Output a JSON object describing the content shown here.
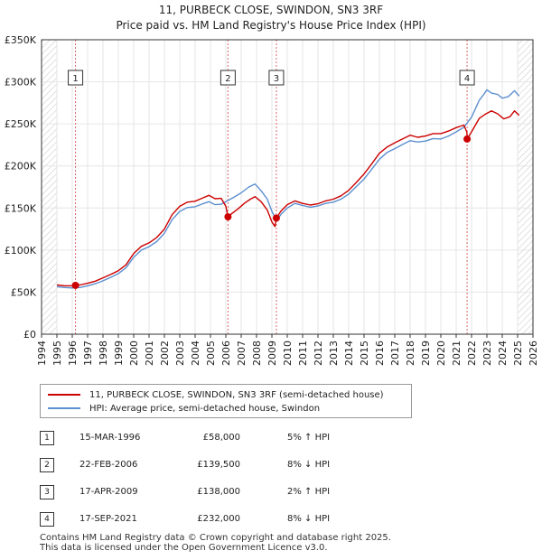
{
  "header": {
    "title": "11, PURBECK CLOSE, SWINDON, SN3 3RF",
    "subtitle": "Price paid vs. HM Land Registry's House Price Index (HPI)"
  },
  "colors": {
    "property": "#cc0000",
    "hpi": "#5b8fd0",
    "marker": "#cc0000",
    "vline": "#d96666",
    "hatch": "#cccccc"
  },
  "chart_data": {
    "type": "line",
    "x_unit": "year",
    "xlim": [
      1994,
      2026
    ],
    "ylim": [
      0,
      350000
    ],
    "x_ticks": [
      "1994",
      "1995",
      "1996",
      "1997",
      "1998",
      "1999",
      "2000",
      "2001",
      "2002",
      "2003",
      "2004",
      "2005",
      "2006",
      "2007",
      "2008",
      "2009",
      "2010",
      "2011",
      "2012",
      "2013",
      "2014",
      "2015",
      "2016",
      "2017",
      "2018",
      "2019",
      "2020",
      "2021",
      "2022",
      "2023",
      "2024",
      "2025",
      "2026"
    ],
    "y_ticks": [
      {
        "value": 0,
        "label": "£0"
      },
      {
        "value": 50000,
        "label": "£50K"
      },
      {
        "value": 100000,
        "label": "£100K"
      },
      {
        "value": 150000,
        "label": "£150K"
      },
      {
        "value": 200000,
        "label": "£200K"
      },
      {
        "value": 250000,
        "label": "£250K"
      },
      {
        "value": 300000,
        "label": "£300K"
      },
      {
        "value": 350000,
        "label": "£350K"
      }
    ],
    "hatched_ranges": [
      [
        1994,
        1995
      ],
      [
        2025.0,
        2026
      ]
    ],
    "series": [
      {
        "name": "11, PURBECK CLOSE, SWINDON, SN3 3RF (semi-detached house)",
        "color": "#cc0000",
        "points": [
          [
            1995.0,
            58500
          ],
          [
            1995.5,
            57500
          ],
          [
            1996.0,
            57500
          ],
          [
            1996.2,
            58000
          ],
          [
            1996.5,
            58500
          ],
          [
            1997.0,
            60500
          ],
          [
            1997.5,
            63000
          ],
          [
            1998.0,
            67000
          ],
          [
            1998.5,
            71000
          ],
          [
            1999.0,
            75500
          ],
          [
            1999.5,
            82500
          ],
          [
            2000.0,
            96000
          ],
          [
            2000.5,
            104500
          ],
          [
            2001.0,
            108500
          ],
          [
            2001.5,
            115000
          ],
          [
            2002.0,
            125000
          ],
          [
            2002.5,
            142000
          ],
          [
            2003.0,
            152000
          ],
          [
            2003.5,
            157000
          ],
          [
            2004.0,
            158000
          ],
          [
            2004.5,
            162000
          ],
          [
            2004.9,
            165000
          ],
          [
            2005.3,
            161000
          ],
          [
            2005.7,
            161500
          ],
          [
            2006.0,
            152000
          ],
          [
            2006.14,
            139500
          ],
          [
            2006.4,
            143500
          ],
          [
            2006.8,
            149000
          ],
          [
            2007.2,
            155500
          ],
          [
            2007.6,
            160500
          ],
          [
            2007.9,
            163500
          ],
          [
            2008.3,
            157500
          ],
          [
            2008.7,
            147500
          ],
          [
            2009.0,
            133500
          ],
          [
            2009.2,
            128000
          ],
          [
            2009.29,
            138000
          ],
          [
            2009.6,
            146500
          ],
          [
            2010.0,
            154000
          ],
          [
            2010.5,
            158500
          ],
          [
            2011.0,
            155500
          ],
          [
            2011.5,
            153500
          ],
          [
            2012.0,
            155000
          ],
          [
            2012.5,
            158500
          ],
          [
            2013.0,
            160500
          ],
          [
            2013.5,
            164500
          ],
          [
            2014.0,
            171000
          ],
          [
            2014.5,
            180500
          ],
          [
            2015.0,
            190500
          ],
          [
            2015.5,
            202500
          ],
          [
            2016.0,
            215000
          ],
          [
            2016.5,
            222500
          ],
          [
            2017.0,
            227500
          ],
          [
            2017.5,
            232000
          ],
          [
            2018.0,
            236500
          ],
          [
            2018.5,
            234000
          ],
          [
            2019.0,
            235500
          ],
          [
            2019.5,
            238500
          ],
          [
            2020.0,
            238500
          ],
          [
            2020.5,
            241500
          ],
          [
            2021.0,
            245500
          ],
          [
            2021.5,
            248500
          ],
          [
            2021.7,
            240000
          ],
          [
            2021.71,
            232000
          ],
          [
            2022.0,
            240500
          ],
          [
            2022.5,
            256500
          ],
          [
            2022.9,
            261500
          ],
          [
            2023.3,
            265500
          ],
          [
            2023.7,
            262000
          ],
          [
            2024.1,
            256000
          ],
          [
            2024.5,
            258500
          ],
          [
            2024.8,
            265500
          ],
          [
            2025.1,
            260000
          ]
        ]
      },
      {
        "name": "HPI: Average price, semi-detached house, Swindon",
        "color": "#5b8fd0",
        "points": [
          [
            1995.0,
            56500
          ],
          [
            1995.5,
            55500
          ],
          [
            1996.0,
            55000
          ],
          [
            1996.5,
            55500
          ],
          [
            1997.0,
            57500
          ],
          [
            1997.5,
            60000
          ],
          [
            1998.0,
            63500
          ],
          [
            1998.5,
            67500
          ],
          [
            1999.0,
            72000
          ],
          [
            1999.5,
            79000
          ],
          [
            2000.0,
            91500
          ],
          [
            2000.5,
            100000
          ],
          [
            2001.0,
            104000
          ],
          [
            2001.5,
            110000
          ],
          [
            2002.0,
            120000
          ],
          [
            2002.5,
            136000
          ],
          [
            2003.0,
            146000
          ],
          [
            2003.5,
            150500
          ],
          [
            2004.0,
            151500
          ],
          [
            2004.5,
            155000
          ],
          [
            2004.9,
            157500
          ],
          [
            2005.3,
            154000
          ],
          [
            2005.7,
            154500
          ],
          [
            2006.0,
            157500
          ],
          [
            2006.5,
            162500
          ],
          [
            2007.0,
            168000
          ],
          [
            2007.5,
            175000
          ],
          [
            2007.9,
            178500
          ],
          [
            2008.3,
            170500
          ],
          [
            2008.7,
            160500
          ],
          [
            2009.0,
            146000
          ],
          [
            2009.3,
            135500
          ],
          [
            2009.6,
            142500
          ],
          [
            2010.0,
            150000
          ],
          [
            2010.5,
            155500
          ],
          [
            2011.0,
            153000
          ],
          [
            2011.5,
            151000
          ],
          [
            2012.0,
            152500
          ],
          [
            2012.5,
            155500
          ],
          [
            2013.0,
            157000
          ],
          [
            2013.5,
            160500
          ],
          [
            2014.0,
            166500
          ],
          [
            2014.5,
            175500
          ],
          [
            2015.0,
            184500
          ],
          [
            2015.5,
            196000
          ],
          [
            2016.0,
            208000
          ],
          [
            2016.5,
            216000
          ],
          [
            2017.0,
            220500
          ],
          [
            2017.5,
            225500
          ],
          [
            2018.0,
            230000
          ],
          [
            2018.5,
            228500
          ],
          [
            2019.0,
            229500
          ],
          [
            2019.5,
            232500
          ],
          [
            2020.0,
            232000
          ],
          [
            2020.5,
            235500
          ],
          [
            2021.0,
            240500
          ],
          [
            2021.5,
            246000
          ],
          [
            2022.0,
            258000
          ],
          [
            2022.5,
            278000
          ],
          [
            2022.8,
            285000
          ],
          [
            2023.0,
            290500
          ],
          [
            2023.3,
            286500
          ],
          [
            2023.7,
            285000
          ],
          [
            2024.0,
            280500
          ],
          [
            2024.4,
            282500
          ],
          [
            2024.8,
            289500
          ],
          [
            2025.1,
            283000
          ]
        ]
      }
    ],
    "sales": [
      {
        "label": "1",
        "x": 1996.21,
        "price": 58000
      },
      {
        "label": "2",
        "x": 2006.14,
        "price": 139500
      },
      {
        "label": "3",
        "x": 2009.29,
        "price": 138000
      },
      {
        "label": "4",
        "x": 2021.71,
        "price": 232000
      }
    ]
  },
  "legend": {
    "property_label": "11, PURBECK CLOSE, SWINDON, SN3 3RF (semi-detached house)",
    "hpi_label": "HPI: Average price, semi-detached house, Swindon"
  },
  "transactions": [
    {
      "num": "1",
      "date": "15-MAR-1996",
      "price": "£58,000",
      "pct": "5% ↑ HPI"
    },
    {
      "num": "2",
      "date": "22-FEB-2006",
      "price": "£139,500",
      "pct": "8% ↓ HPI"
    },
    {
      "num": "3",
      "date": "17-APR-2009",
      "price": "£138,000",
      "pct": "2% ↑ HPI"
    },
    {
      "num": "4",
      "date": "17-SEP-2021",
      "price": "£232,000",
      "pct": "8% ↓ HPI"
    }
  ],
  "footer": {
    "line1": "Contains HM Land Registry data © Crown copyright and database right 2025.",
    "line2": "This data is licensed under the Open Government Licence v3.0."
  }
}
